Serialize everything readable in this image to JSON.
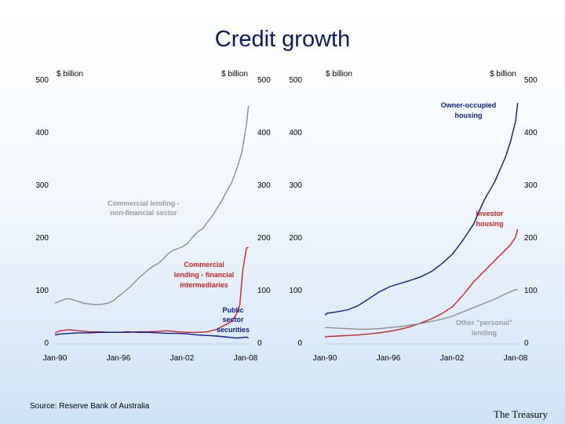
{
  "title": "Credit growth",
  "source": "Source: Reserve Bank of Australia",
  "brand": "The Treasury",
  "colors": {
    "grey": "#8c8c8c",
    "red": "#d42020",
    "blue": "#0a1a96",
    "label_grey": "#9a9a9a"
  },
  "chart_data": [
    {
      "type": "line",
      "unit_left": "$ billion",
      "unit_right": "$ billion",
      "y_ticks": [
        "0",
        "100",
        "200",
        "300",
        "400",
        "500"
      ],
      "ylim": [
        0,
        500
      ],
      "x_ticks": [
        "Jan-90",
        "Jan-96",
        "Jan-02",
        "Jan-08"
      ],
      "xlim": [
        1988.5,
        2008.3
      ],
      "annotations": [
        "Commercial lending -",
        "non-financial sector",
        "Commercial",
        "lending - financial",
        "intermediaries",
        "Public",
        "sector",
        "securities"
      ],
      "series": [
        {
          "name": "Commercial lending - non-financial sector",
          "color": "#8c8c8c",
          "x": [
            1988.5,
            1989,
            1989.5,
            1990,
            1990.5,
            1991,
            1991.5,
            1992,
            1992.5,
            1993,
            1993.5,
            1994,
            1994.5,
            1995,
            1995.5,
            1996,
            1996.5,
            1997,
            1997.5,
            1998,
            1998.5,
            1999,
            1999.5,
            2000,
            2000.5,
            2001,
            2001.5,
            2002,
            2002.5,
            2003,
            2003.5,
            2004,
            2004.5,
            2005,
            2005.5,
            2006,
            2006.5,
            2007,
            2007.5,
            2008,
            2008.2
          ],
          "y": [
            75,
            78,
            82,
            83,
            80,
            77,
            74,
            73,
            72,
            72,
            73,
            75,
            80,
            88,
            95,
            103,
            112,
            122,
            130,
            138,
            145,
            150,
            158,
            168,
            175,
            178,
            182,
            188,
            200,
            210,
            215,
            228,
            240,
            255,
            270,
            288,
            305,
            330,
            360,
            415,
            450
          ]
        },
        {
          "name": "Commercial lending - financial intermediaries",
          "color": "#d42020",
          "x": [
            1988.5,
            1989,
            1990,
            1991,
            1992,
            1993,
            1994,
            1995,
            1996,
            1997,
            1998,
            1999,
            2000,
            2001,
            2002,
            2003,
            2004,
            2005,
            2005.5,
            2006,
            2006.5,
            2007,
            2007.3,
            2007.6,
            2008,
            2008.2
          ],
          "y": [
            18,
            22,
            24,
            22,
            20,
            20,
            19,
            19,
            19,
            20,
            20,
            21,
            22,
            20,
            19,
            19,
            20,
            25,
            30,
            35,
            40,
            55,
            70,
            135,
            180,
            180
          ]
        },
        {
          "name": "Public sector securities",
          "color": "#0a1a96",
          "x": [
            1988.5,
            1989,
            1990,
            1991,
            1992,
            1993,
            1994,
            1995,
            1996,
            1997,
            1998,
            1999,
            2000,
            2001,
            2002,
            2003,
            2004,
            2005,
            2006,
            2007,
            2007.5,
            2008,
            2008.2
          ],
          "y": [
            14,
            16,
            17,
            18,
            18,
            19,
            19,
            19,
            20,
            19,
            19,
            18,
            17,
            17,
            16,
            14,
            13,
            12,
            10,
            8,
            9,
            10,
            8
          ]
        }
      ]
    },
    {
      "type": "line",
      "unit_left": "$ billion",
      "unit_right": "$ billion",
      "y_ticks": [
        "0",
        "100",
        "200",
        "300",
        "400",
        "500"
      ],
      "ylim": [
        0,
        500
      ],
      "x_ticks": [
        "Jan-90",
        "Jan-96",
        "Jan-02",
        "Jan-08"
      ],
      "xlim": [
        1989.8,
        2008.3
      ],
      "annotations": [
        "Owner-occupied",
        "housing",
        "Investor",
        "housing",
        "Other \"personal\"",
        "lending"
      ],
      "series": [
        {
          "name": "Owner-occupied housing",
          "color": "#0a1a96",
          "x": [
            1989.8,
            1990,
            1991,
            1992,
            1993,
            1994,
            1995,
            1996,
            1997,
            1998,
            1999,
            2000,
            2001,
            2002,
            2003,
            2004,
            2004.5,
            2005,
            2006,
            2007,
            2007.5,
            2008,
            2008.2
          ],
          "y": [
            52,
            55,
            58,
            62,
            70,
            83,
            96,
            106,
            112,
            118,
            125,
            135,
            150,
            168,
            195,
            225,
            248,
            270,
            305,
            350,
            380,
            420,
            455
          ]
        },
        {
          "name": "Investor housing",
          "color": "#d42020",
          "x": [
            1989.8,
            1990,
            1991,
            1992,
            1993,
            1994,
            1995,
            1996,
            1997,
            1998,
            1999,
            2000,
            2001,
            2002,
            2003,
            2004,
            2005,
            2006,
            2007,
            2007.5,
            2008,
            2008.2
          ],
          "y": [
            10,
            11,
            12,
            13,
            14,
            16,
            18,
            21,
            25,
            30,
            37,
            45,
            55,
            68,
            90,
            115,
            135,
            155,
            175,
            185,
            200,
            215
          ]
        },
        {
          "name": "Other \"personal\" lending",
          "color": "#8c8c8c",
          "x": [
            1989.8,
            1990,
            1991,
            1992,
            1993,
            1994,
            1995,
            1996,
            1997,
            1998,
            1999,
            2000,
            2001,
            2002,
            2003,
            2004,
            2005,
            2006,
            2007,
            2007.5,
            2008,
            2008.2
          ],
          "y": [
            28,
            28,
            27,
            26,
            25,
            25,
            26,
            28,
            30,
            33,
            36,
            40,
            44,
            50,
            58,
            66,
            74,
            82,
            92,
            96,
            100,
            100
          ]
        }
      ]
    }
  ]
}
